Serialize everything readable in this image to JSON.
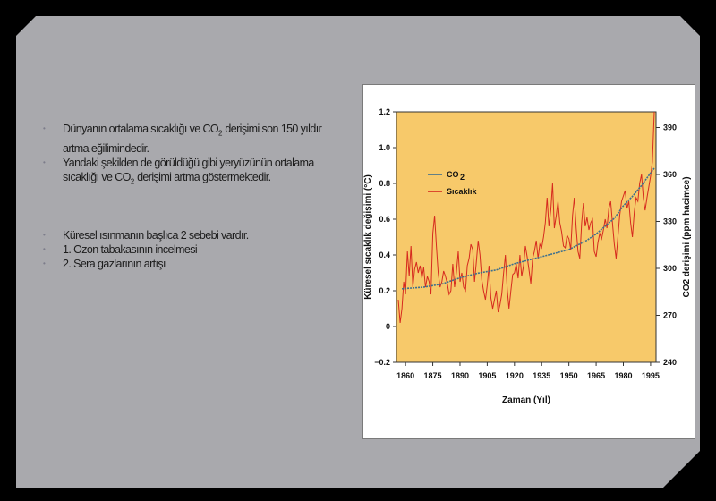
{
  "slide": {
    "bullets": [
      {
        "prefix": "Dünyanın ortalama sıcaklığı ve CO",
        "sub": "2",
        "suffix": " derişimi son 150 yıldır artma eğilimindedir."
      },
      {
        "prefix": "Yandaki şekilden de görüldüğü gibi yeryüzünün ortalama sıcaklığı ve CO",
        "sub": "2",
        "suffix": " derişimi artma göstermektedir."
      },
      {
        "prefix": "Küresel ısınmanın başlıca 2 sebebi vardır.",
        "sub": "",
        "suffix": ""
      },
      {
        "prefix": "1. Ozon tabakasının incelmesi",
        "sub": "",
        "suffix": ""
      },
      {
        "prefix": "2. Sera gazlarının artışı",
        "sub": "",
        "suffix": ""
      }
    ],
    "colors": {
      "background": "#000000",
      "panel": "#a9a9ad",
      "text": "#1c1c1c",
      "bullet_marker": "#7c7c8a"
    }
  },
  "chart_data": {
    "type": "line",
    "title": "",
    "xlabel": "Zaman (Yıl)",
    "ylabel": "Küresel sıcaklık değişimi (°C)",
    "y2label": "CO2 derişimi (ppm hacimce)",
    "xlim": [
      1855,
      1998
    ],
    "ylim": [
      -0.2,
      1.2
    ],
    "y2lim": [
      240,
      400
    ],
    "x_ticks": [
      "1860",
      "1875",
      "1890",
      "1905",
      "1920",
      "1935",
      "1950",
      "1965",
      "1980",
      "1995"
    ],
    "y_ticks": [
      "−0.2",
      "0",
      "0.2",
      "0.4",
      "0.6",
      "0.8",
      "1.0",
      "1.2"
    ],
    "y2_ticks": [
      "240",
      "270",
      "300",
      "330",
      "360",
      "390"
    ],
    "plot_background": "#f7c96a",
    "legend": {
      "position": "upper-left",
      "items": [
        {
          "label": "CO",
          "sub": "2",
          "color": "#3d6f8e"
        },
        {
          "label": "Sıcaklık",
          "color": "#d62a1e"
        }
      ]
    },
    "series": [
      {
        "name": "Sıcaklık",
        "axis": "left",
        "color": "#d62a1e",
        "x": [
          1856,
          1857,
          1858,
          1859,
          1860,
          1861,
          1862,
          1863,
          1864,
          1865,
          1866,
          1867,
          1868,
          1869,
          1870,
          1871,
          1872,
          1873,
          1874,
          1875,
          1876,
          1877,
          1878,
          1879,
          1880,
          1881,
          1882,
          1883,
          1884,
          1885,
          1886,
          1887,
          1888,
          1889,
          1890,
          1891,
          1892,
          1893,
          1894,
          1895,
          1896,
          1897,
          1898,
          1899,
          1900,
          1901,
          1902,
          1903,
          1904,
          1905,
          1906,
          1907,
          1908,
          1909,
          1910,
          1911,
          1912,
          1913,
          1914,
          1915,
          1916,
          1917,
          1918,
          1919,
          1920,
          1921,
          1922,
          1923,
          1924,
          1925,
          1926,
          1927,
          1928,
          1929,
          1930,
          1931,
          1932,
          1933,
          1934,
          1935,
          1936,
          1937,
          1938,
          1939,
          1940,
          1941,
          1942,
          1943,
          1944,
          1945,
          1946,
          1947,
          1948,
          1949,
          1950,
          1951,
          1952,
          1953,
          1954,
          1955,
          1956,
          1957,
          1958,
          1959,
          1960,
          1961,
          1962,
          1963,
          1964,
          1965,
          1966,
          1967,
          1968,
          1969,
          1970,
          1971,
          1972,
          1973,
          1974,
          1975,
          1976,
          1977,
          1978,
          1979,
          1980,
          1981,
          1982,
          1983,
          1984,
          1985,
          1986,
          1987,
          1988,
          1989,
          1990,
          1991,
          1992,
          1993,
          1994,
          1995,
          1996,
          1997
        ],
        "y": [
          0.15,
          0.02,
          0.1,
          0.25,
          0.18,
          0.42,
          0.28,
          0.45,
          0.22,
          0.32,
          0.36,
          0.3,
          0.34,
          0.27,
          0.33,
          0.22,
          0.28,
          0.25,
          0.18,
          0.52,
          0.62,
          0.45,
          0.3,
          0.22,
          0.25,
          0.31,
          0.28,
          0.24,
          0.18,
          0.2,
          0.35,
          0.22,
          0.3,
          0.42,
          0.25,
          0.3,
          0.22,
          0.2,
          0.34,
          0.38,
          0.46,
          0.43,
          0.25,
          0.36,
          0.48,
          0.4,
          0.26,
          0.2,
          0.15,
          0.23,
          0.34,
          0.16,
          0.1,
          0.15,
          0.2,
          0.08,
          0.12,
          0.18,
          0.3,
          0.4,
          0.21,
          0.1,
          0.2,
          0.29,
          0.3,
          0.35,
          0.27,
          0.4,
          0.28,
          0.34,
          0.45,
          0.39,
          0.32,
          0.24,
          0.38,
          0.42,
          0.48,
          0.38,
          0.46,
          0.44,
          0.5,
          0.58,
          0.72,
          0.56,
          0.65,
          0.8,
          0.55,
          0.62,
          0.7,
          0.58,
          0.53,
          0.45,
          0.44,
          0.51,
          0.49,
          0.43,
          0.62,
          0.72,
          0.55,
          0.42,
          0.38,
          0.58,
          0.69,
          0.56,
          0.61,
          0.54,
          0.58,
          0.6,
          0.42,
          0.39,
          0.47,
          0.52,
          0.49,
          0.54,
          0.6,
          0.55,
          0.66,
          0.7,
          0.58,
          0.46,
          0.38,
          0.5,
          0.62,
          0.7,
          0.73,
          0.76,
          0.66,
          0.7,
          0.58,
          0.5,
          0.64,
          0.72,
          0.7,
          0.8,
          0.85,
          0.72,
          0.65,
          0.72,
          0.78,
          0.84,
          0.92,
          1.2
        ]
      },
      {
        "name": "CO2",
        "axis": "right",
        "color": "#3d6f8e",
        "x": [
          1858,
          1870,
          1880,
          1890,
          1900,
          1910,
          1920,
          1930,
          1940,
          1950,
          1960,
          1965,
          1970,
          1975,
          1980,
          1985,
          1990,
          1995,
          1997
        ],
        "y": [
          287,
          288,
          290,
          294,
          297,
          299,
          303,
          306,
          309,
          312,
          318,
          322,
          327,
          332,
          340,
          346,
          353,
          361,
          364
        ]
      }
    ]
  }
}
